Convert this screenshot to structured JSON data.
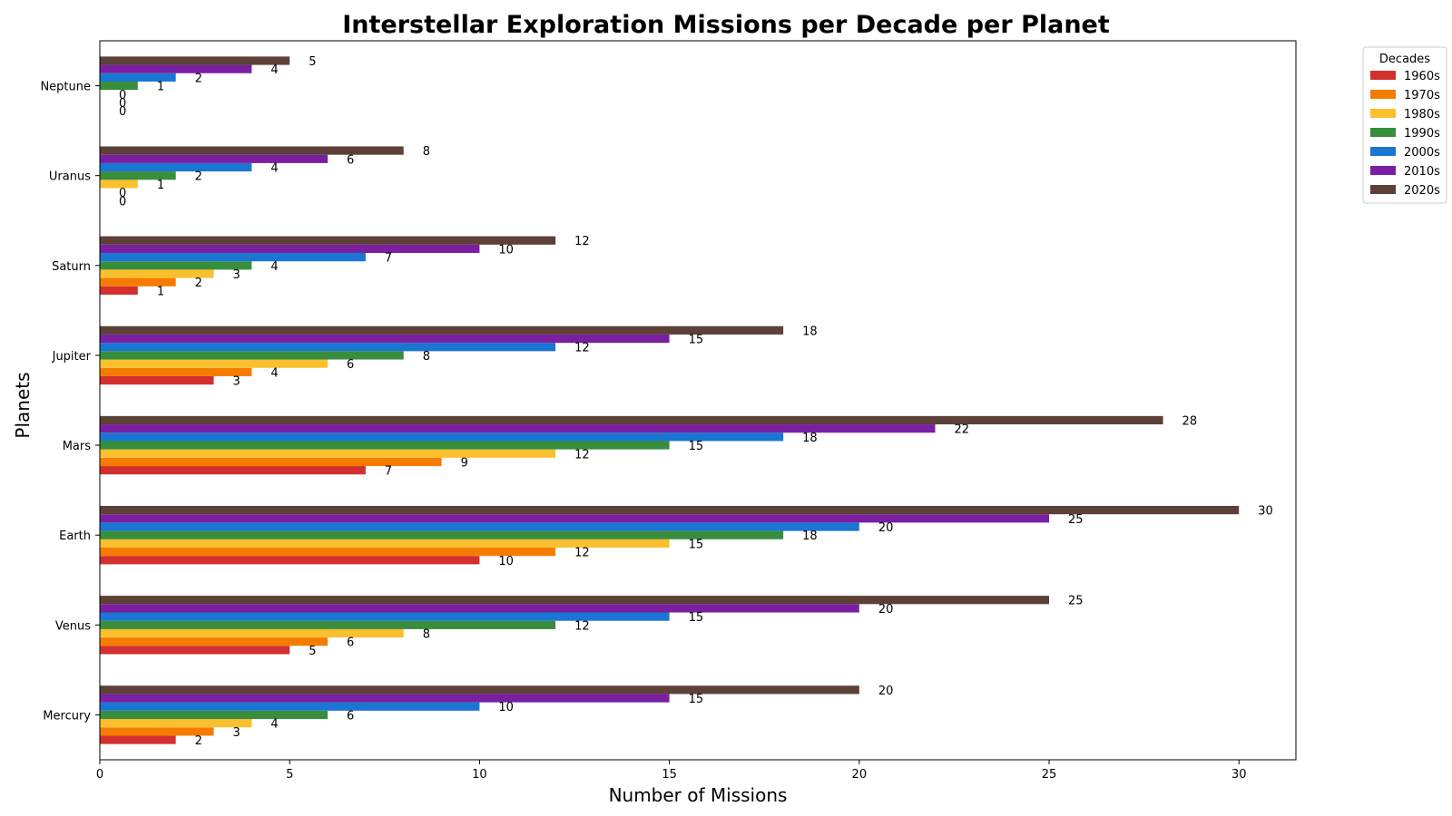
{
  "chart_data": {
    "type": "bar",
    "orientation": "horizontal",
    "title": "Interstellar Exploration Missions per Decade per Planet",
    "xlabel": "Number of Missions",
    "ylabel": "Planets",
    "categories": [
      "Mercury",
      "Venus",
      "Earth",
      "Mars",
      "Jupiter",
      "Saturn",
      "Uranus",
      "Neptune"
    ],
    "xlim": [
      0,
      31.5
    ],
    "xticks": [
      0,
      5,
      10,
      15,
      20,
      25,
      30
    ],
    "grid": false,
    "legend": {
      "title": "Decades",
      "placement": "outside-top-right"
    },
    "series": [
      {
        "name": "1960s",
        "color": "#d32f2f",
        "values": [
          2,
          5,
          10,
          7,
          3,
          1,
          0,
          0
        ]
      },
      {
        "name": "1970s",
        "color": "#f57c00",
        "values": [
          3,
          6,
          12,
          9,
          4,
          2,
          0,
          0
        ]
      },
      {
        "name": "1980s",
        "color": "#fbc02d",
        "values": [
          4,
          8,
          15,
          12,
          6,
          3,
          1,
          0
        ]
      },
      {
        "name": "1990s",
        "color": "#388e3c",
        "values": [
          6,
          12,
          18,
          15,
          8,
          4,
          2,
          1
        ]
      },
      {
        "name": "2000s",
        "color": "#1976d2",
        "values": [
          10,
          15,
          20,
          18,
          12,
          7,
          4,
          2
        ]
      },
      {
        "name": "2010s",
        "color": "#7b1fa2",
        "values": [
          15,
          20,
          25,
          22,
          15,
          10,
          6,
          4
        ]
      },
      {
        "name": "2020s",
        "color": "#5d4037",
        "values": [
          20,
          25,
          30,
          28,
          18,
          12,
          8,
          5
        ]
      }
    ]
  }
}
